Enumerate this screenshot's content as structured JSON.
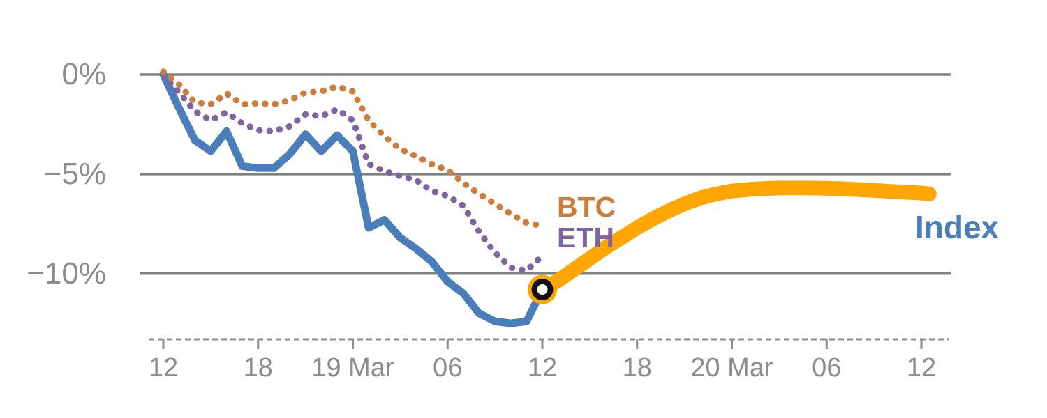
{
  "chart_data": {
    "type": "line",
    "title": "",
    "description": "Percent change of BTC, ETH and an Index from 18 Mar 12:00; solid blue Index history turns into thick orange projected/forecast line after the marked current point at 19 Mar 12:00.",
    "x_axis": {
      "unit": "hours since 18 Mar 12:00",
      "tick_hours": [
        0,
        6,
        12,
        18,
        24,
        30,
        36,
        42,
        48
      ],
      "tick_labels": [
        "12",
        "18",
        "19 Mar",
        "06",
        "12",
        "18",
        "20 Mar",
        "06",
        "12"
      ],
      "style": "dashed baseline with short ticks"
    },
    "y_axis": {
      "unit": "%",
      "tick_values": [
        0,
        -5,
        -10
      ],
      "tick_labels": [
        "0%",
        "−5%",
        "−10%"
      ],
      "range": [
        -13.6,
        0.6
      ],
      "grid": true
    },
    "legend_position": "inline labels at line ends",
    "labels": {
      "btc": "BTC",
      "eth": "ETH",
      "index": "Index"
    },
    "series": [
      {
        "name": "BTC",
        "color": "#cf7c3a",
        "line_style": "dotted",
        "width": 9,
        "x_hours": [
          0,
          1,
          2,
          3,
          4,
          5,
          6,
          7,
          8,
          9,
          10,
          11,
          12,
          13,
          14,
          15,
          16,
          17,
          18,
          19,
          20,
          21,
          22,
          23,
          24
        ],
        "values": [
          0.15,
          -0.5,
          -1.4,
          -1.5,
          -0.95,
          -1.5,
          -1.45,
          -1.5,
          -1.3,
          -0.9,
          -0.85,
          -0.6,
          -0.85,
          -2.3,
          -3.1,
          -3.75,
          -4.1,
          -4.5,
          -4.8,
          -5.45,
          -6.0,
          -6.5,
          -7.0,
          -7.45,
          -7.6
        ]
      },
      {
        "name": "ETH",
        "color": "#8064a2",
        "line_style": "dotted",
        "width": 9,
        "x_hours": [
          0,
          1,
          2,
          3,
          4,
          5,
          6,
          7,
          8,
          9,
          10,
          11,
          12,
          13,
          14,
          15,
          16,
          17,
          18,
          19,
          20,
          21,
          22,
          23,
          24
        ],
        "values": [
          -0.05,
          -0.9,
          -1.85,
          -2.3,
          -1.9,
          -2.45,
          -2.8,
          -2.85,
          -2.6,
          -2.0,
          -2.1,
          -1.75,
          -2.3,
          -4.5,
          -4.85,
          -5.1,
          -5.3,
          -5.85,
          -6.1,
          -6.6,
          -7.9,
          -8.95,
          -9.7,
          -9.85,
          -9.1
        ]
      },
      {
        "name": "Index",
        "color": "#4a7ebb",
        "line_style": "solid",
        "width": 11,
        "x_hours": [
          0,
          1,
          2,
          3,
          4,
          5,
          6,
          7,
          8,
          9,
          10,
          11,
          12,
          13,
          14,
          15,
          16,
          17,
          18,
          19,
          20,
          21,
          22,
          23,
          24
        ],
        "values": [
          0.0,
          -1.7,
          -3.3,
          -3.85,
          -2.85,
          -4.6,
          -4.7,
          -4.7,
          -4.0,
          -3.0,
          -3.85,
          -3.05,
          -3.85,
          -7.7,
          -7.3,
          -8.2,
          -8.75,
          -9.4,
          -10.4,
          -11.0,
          -12.0,
          -12.4,
          -12.5,
          -12.4,
          -10.8
        ]
      },
      {
        "name": "Index forecast",
        "color": "#ffa600",
        "line_style": "solid",
        "width": 21,
        "x_hours": [
          24,
          25,
          26,
          27,
          28,
          29,
          30,
          31,
          32,
          33,
          34,
          35,
          36,
          37,
          38,
          39,
          40,
          41,
          42,
          43,
          44,
          45,
          46,
          47,
          48,
          48.5
        ],
        "values": [
          -10.8,
          -10.35,
          -9.8,
          -9.25,
          -8.7,
          -8.2,
          -7.7,
          -7.25,
          -6.85,
          -6.5,
          -6.2,
          -6.0,
          -5.85,
          -5.78,
          -5.73,
          -5.7,
          -5.7,
          -5.7,
          -5.72,
          -5.74,
          -5.78,
          -5.82,
          -5.87,
          -5.91,
          -5.95,
          -6.0
        ]
      }
    ],
    "marker": {
      "x_hour": 24,
      "value": -10.8,
      "style": "black ring with white center on orange disc",
      "disc_color": "#ffa600",
      "ring_color": "#111111",
      "center_color": "#ffffff"
    },
    "colors": {
      "grid": "#808080",
      "axis_text": "#8c8c8c",
      "btc": "#cf7c3a",
      "eth": "#8064a2",
      "index": "#4a7ebb",
      "forecast": "#ffa600"
    }
  }
}
